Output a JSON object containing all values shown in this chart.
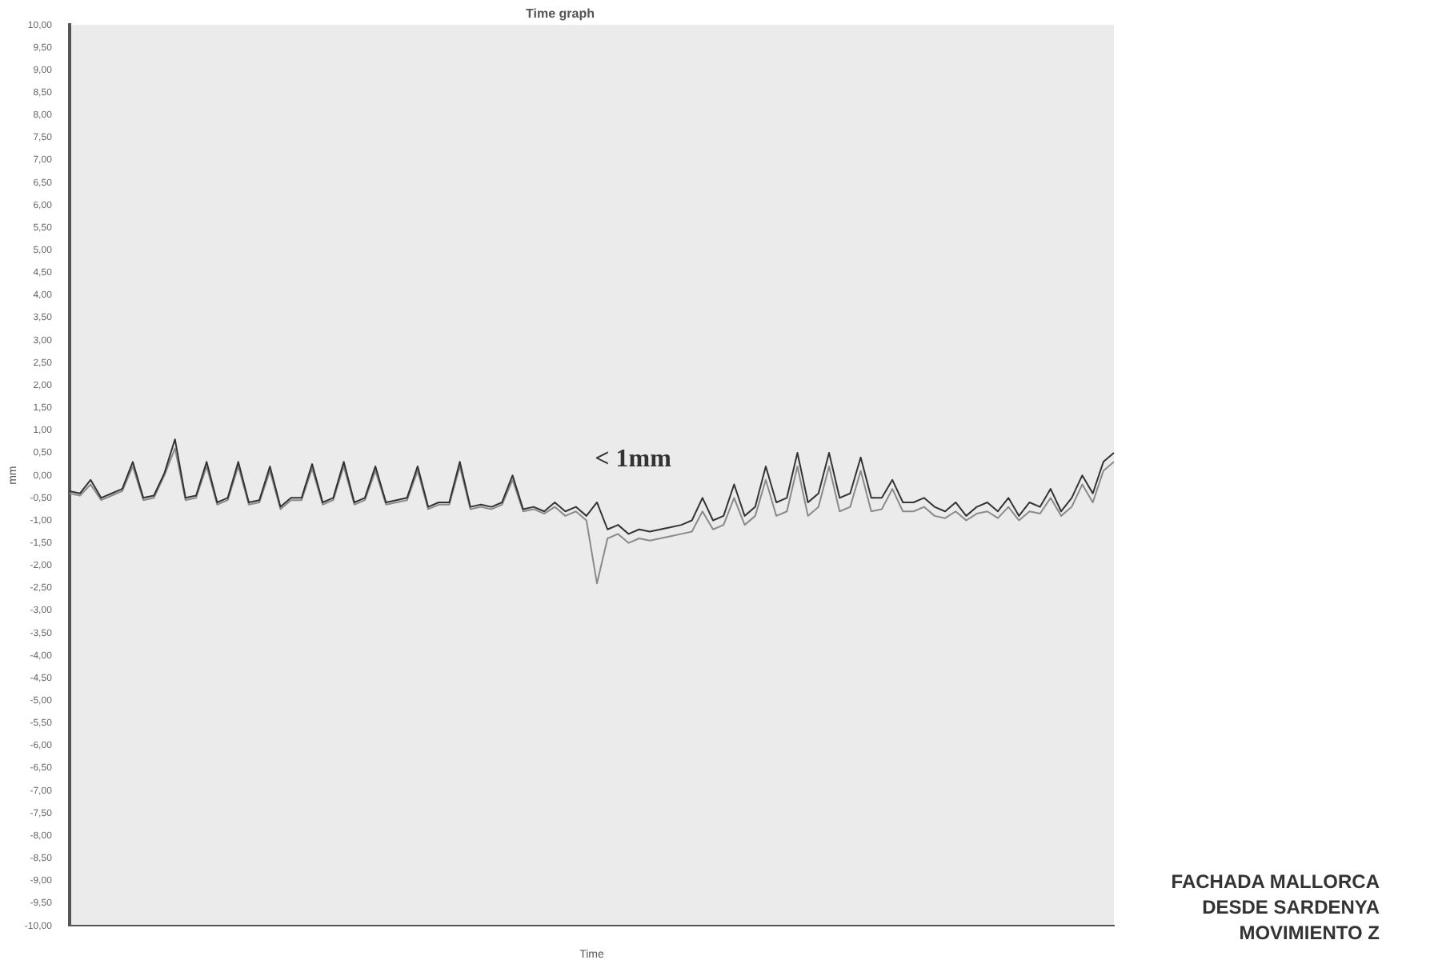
{
  "chart_data": {
    "type": "line",
    "title": "Time graph",
    "xlabel": "Time",
    "ylabel": "mm",
    "categories": [
      null,
      null,
      null,
      null,
      null,
      null,
      null,
      null,
      null,
      null,
      null,
      null,
      null,
      null,
      null,
      null,
      null,
      null,
      null,
      null,
      null,
      null,
      null,
      null,
      null,
      null,
      null,
      null,
      null,
      null,
      null,
      null,
      null,
      null,
      null,
      null,
      null,
      null,
      null,
      null,
      null,
      null,
      null,
      null,
      null,
      null,
      null,
      null,
      null,
      null,
      null,
      null,
      null,
      null,
      null,
      null,
      null,
      null,
      null,
      null,
      null,
      null,
      null,
      null,
      null,
      null,
      null,
      null,
      null,
      null,
      null,
      null,
      null,
      null,
      null,
      null,
      null,
      null,
      null,
      null,
      null,
      null,
      null,
      null,
      null,
      null,
      null,
      null,
      null,
      null,
      null,
      null,
      null,
      null,
      null,
      null,
      null,
      null,
      null,
      null
    ],
    "series": [
      {
        "color": "#333333",
        "values": [
          -0.35,
          -0.4,
          -0.1,
          -0.5,
          -0.4,
          -0.3,
          0.3,
          -0.5,
          -0.45,
          0.05,
          0.8,
          -0.5,
          -0.45,
          0.3,
          -0.6,
          -0.5,
          0.3,
          -0.6,
          -0.55,
          0.2,
          -0.7,
          -0.5,
          -0.5,
          0.25,
          -0.6,
          -0.5,
          0.3,
          -0.6,
          -0.5,
          0.2,
          -0.6,
          -0.55,
          -0.5,
          0.2,
          -0.7,
          -0.6,
          -0.6,
          0.3,
          -0.7,
          -0.65,
          -0.7,
          -0.6,
          0.0,
          -0.75,
          -0.7,
          -0.8,
          -0.6,
          -0.8,
          -0.7,
          -0.9,
          -0.6,
          -1.2,
          -1.1,
          -1.3,
          -1.2,
          -1.25,
          -1.2,
          -1.15,
          -1.1,
          -1.0,
          -0.5,
          -1.0,
          -0.9,
          -0.2,
          -0.9,
          -0.7,
          0.2,
          -0.6,
          -0.5,
          0.5,
          -0.6,
          -0.4,
          0.5,
          -0.5,
          -0.4,
          0.4,
          -0.5,
          -0.5,
          -0.1,
          -0.6,
          -0.6,
          -0.5,
          -0.7,
          -0.8,
          -0.6,
          -0.9,
          -0.7,
          -0.6,
          -0.8,
          -0.5,
          -0.9,
          -0.6,
          -0.7,
          -0.3,
          -0.8,
          -0.5,
          0.0,
          -0.4,
          0.3,
          0.5
        ]
      },
      {
        "color": "#8a8a8a",
        "values": [
          -0.4,
          -0.45,
          -0.2,
          -0.55,
          -0.45,
          -0.35,
          0.2,
          -0.55,
          -0.5,
          0.0,
          0.6,
          -0.55,
          -0.5,
          0.2,
          -0.65,
          -0.55,
          0.2,
          -0.65,
          -0.6,
          0.1,
          -0.75,
          -0.55,
          -0.55,
          0.15,
          -0.65,
          -0.55,
          0.2,
          -0.65,
          -0.55,
          0.1,
          -0.65,
          -0.6,
          -0.55,
          0.1,
          -0.75,
          -0.65,
          -0.65,
          0.2,
          -0.75,
          -0.7,
          -0.75,
          -0.65,
          -0.1,
          -0.8,
          -0.75,
          -0.85,
          -0.7,
          -0.9,
          -0.8,
          -1.0,
          -2.4,
          -1.4,
          -1.3,
          -1.5,
          -1.4,
          -1.45,
          -1.4,
          -1.35,
          -1.3,
          -1.25,
          -0.8,
          -1.2,
          -1.1,
          -0.5,
          -1.1,
          -0.9,
          -0.1,
          -0.9,
          -0.8,
          0.2,
          -0.9,
          -0.7,
          0.2,
          -0.8,
          -0.7,
          0.1,
          -0.8,
          -0.75,
          -0.3,
          -0.8,
          -0.8,
          -0.7,
          -0.9,
          -0.95,
          -0.8,
          -1.0,
          -0.85,
          -0.8,
          -0.95,
          -0.7,
          -1.0,
          -0.8,
          -0.85,
          -0.5,
          -0.9,
          -0.7,
          -0.2,
          -0.6,
          0.1,
          0.3
        ]
      }
    ],
    "ylim": [
      -10,
      10
    ],
    "yticks": [
      {
        "value": 10,
        "label": "10,00"
      },
      {
        "value": 9.5,
        "label": "9,50"
      },
      {
        "value": 9,
        "label": "9,00"
      },
      {
        "value": 8.5,
        "label": "8,50"
      },
      {
        "value": 8,
        "label": "8,00"
      },
      {
        "value": 7.5,
        "label": "7,50"
      },
      {
        "value": 7,
        "label": "7,00"
      },
      {
        "value": 6.5,
        "label": "6,50"
      },
      {
        "value": 6,
        "label": "6,00"
      },
      {
        "value": 5.5,
        "label": "5,50"
      },
      {
        "value": 5,
        "label": "5,00"
      },
      {
        "value": 4.5,
        "label": "4,50"
      },
      {
        "value": 4,
        "label": "4,00"
      },
      {
        "value": 3.5,
        "label": "3,50"
      },
      {
        "value": 3,
        "label": "3,00"
      },
      {
        "value": 2.5,
        "label": "2,50"
      },
      {
        "value": 2,
        "label": "2,00"
      },
      {
        "value": 1.5,
        "label": "1,50"
      },
      {
        "value": 1,
        "label": "1,00"
      },
      {
        "value": 0.5,
        "label": "0,50"
      },
      {
        "value": 0,
        "label": "0,00"
      },
      {
        "value": -0.5,
        "label": "-0,50"
      },
      {
        "value": -1,
        "label": "-1,00"
      },
      {
        "value": -1.5,
        "label": "-1,50"
      },
      {
        "value": -2,
        "label": "-2,00"
      },
      {
        "value": -2.5,
        "label": "-2,50"
      },
      {
        "value": -3,
        "label": "-3,00"
      },
      {
        "value": -3.5,
        "label": "-3,50"
      },
      {
        "value": -4,
        "label": "-4,00"
      },
      {
        "value": -4.5,
        "label": "-4,50"
      },
      {
        "value": -5,
        "label": "-5,00"
      },
      {
        "value": -5.5,
        "label": "-5,50"
      },
      {
        "value": -6,
        "label": "-6,00"
      },
      {
        "value": -6.5,
        "label": "-6,50"
      },
      {
        "value": -7,
        "label": "-7,00"
      },
      {
        "value": -7.5,
        "label": "-7,50"
      },
      {
        "value": -8,
        "label": "-8,00"
      },
      {
        "value": -8.5,
        "label": "-8,50"
      },
      {
        "value": -9,
        "label": "-9,00"
      },
      {
        "value": -9.5,
        "label": "-9,50"
      },
      {
        "value": -10,
        "label": "-10,00"
      }
    ],
    "grid": false,
    "marker": "none",
    "line_style": "solid",
    "annotations": [
      "< 1mm",
      "FACHADA MALLORCA",
      "DESDE SARDENYA",
      "MOVIMIENTO Z"
    ]
  }
}
